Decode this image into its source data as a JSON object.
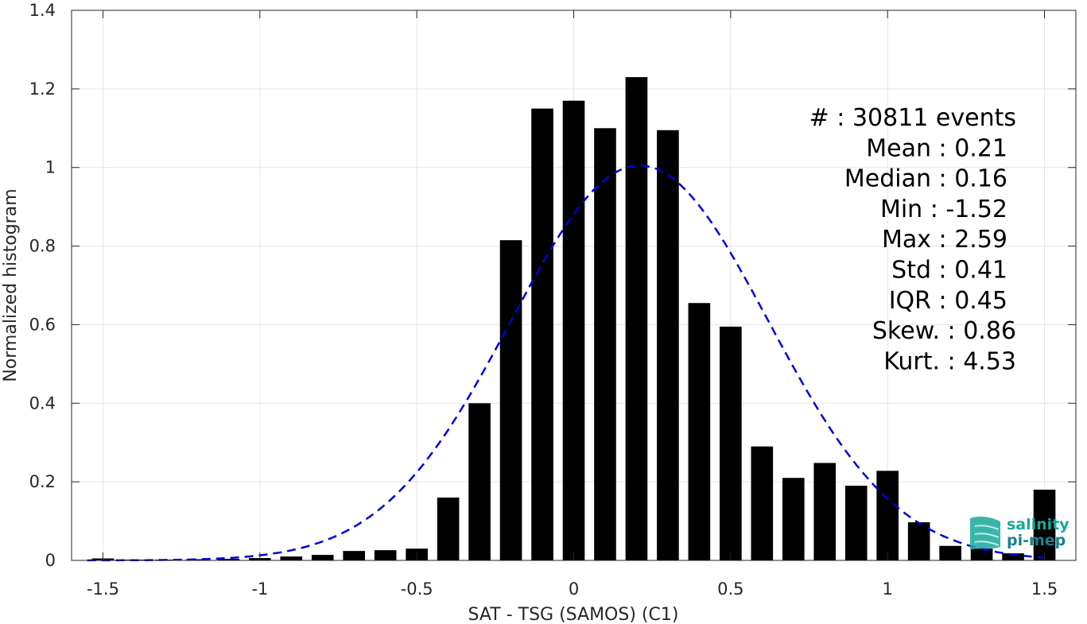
{
  "chart_data": {
    "type": "bar",
    "xlabel": "SAT - TSG (SAMOS) (C1)",
    "ylabel": "Normalized histogram",
    "xlim": [
      -1.6,
      1.6
    ],
    "ylim": [
      0,
      1.4
    ],
    "xticks": [
      -1.5,
      -1,
      -0.5,
      0,
      0.5,
      1,
      1.5
    ],
    "xtick_labels": [
      "-1.5",
      "-1",
      "-0.5",
      "0",
      "0.5",
      "1",
      "1.5"
    ],
    "yticks": [
      0,
      0.2,
      0.4,
      0.6,
      0.8,
      1,
      1.2,
      1.4
    ],
    "ytick_labels": [
      "0",
      "0.2",
      "0.4",
      "0.6",
      "0.8",
      "1",
      "1.2",
      "1.4"
    ],
    "grid": true,
    "bar_color": "#000000",
    "bins": [
      {
        "x": -1.5,
        "value": 0.005
      },
      {
        "x": -1.4,
        "value": 0.002
      },
      {
        "x": -1.3,
        "value": 0.002
      },
      {
        "x": -1.2,
        "value": 0.003
      },
      {
        "x": -1.1,
        "value": 0.004
      },
      {
        "x": -1.0,
        "value": 0.006
      },
      {
        "x": -0.9,
        "value": 0.01
      },
      {
        "x": -0.8,
        "value": 0.014
      },
      {
        "x": -0.7,
        "value": 0.024
      },
      {
        "x": -0.6,
        "value": 0.026
      },
      {
        "x": -0.5,
        "value": 0.03
      },
      {
        "x": -0.4,
        "value": 0.16
      },
      {
        "x": -0.3,
        "value": 0.4
      },
      {
        "x": -0.2,
        "value": 0.815
      },
      {
        "x": -0.1,
        "value": 1.15
      },
      {
        "x": 0.0,
        "value": 1.17
      },
      {
        "x": 0.1,
        "value": 1.1
      },
      {
        "x": 0.2,
        "value": 1.23
      },
      {
        "x": 0.3,
        "value": 1.095
      },
      {
        "x": 0.4,
        "value": 0.655
      },
      {
        "x": 0.5,
        "value": 0.595
      },
      {
        "x": 0.6,
        "value": 0.29
      },
      {
        "x": 0.7,
        "value": 0.21
      },
      {
        "x": 0.8,
        "value": 0.248
      },
      {
        "x": 0.9,
        "value": 0.19
      },
      {
        "x": 1.0,
        "value": 0.228
      },
      {
        "x": 1.1,
        "value": 0.097
      },
      {
        "x": 1.2,
        "value": 0.037
      },
      {
        "x": 1.3,
        "value": 0.03
      },
      {
        "x": 1.4,
        "value": 0.018
      },
      {
        "x": 1.5,
        "value": 0.18
      }
    ],
    "fit_curve": {
      "style": "dashed",
      "color": "#0000dd",
      "mean": 0.21,
      "std": 0.41,
      "peak": 1.005
    },
    "stats_lines": [
      "#  : 30811 events",
      "Mean : 0.21",
      "Median : 0.16",
      "Min : -1.52",
      "Max : 2.59",
      "Std : 0.41",
      "IQR : 0.45",
      "Skew. : 0.86",
      "Kurt. : 4.53"
    ]
  },
  "logo": {
    "line1": "salinity",
    "line2": "pi-mep",
    "color1": "#1aa89a",
    "color2": "#1c7f8c"
  }
}
